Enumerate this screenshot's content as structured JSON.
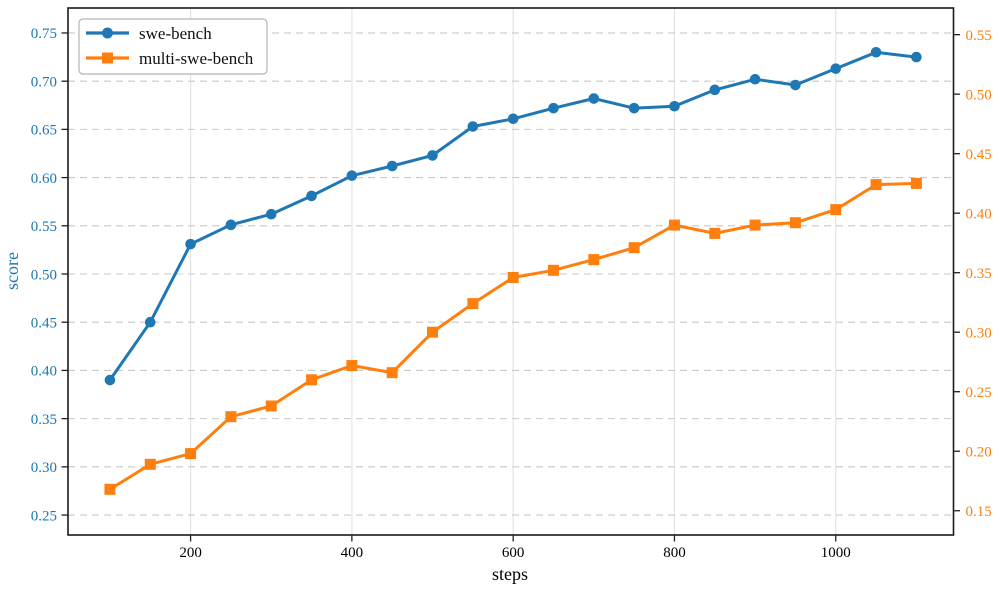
{
  "chart_data": {
    "type": "line",
    "title": "",
    "xlabel": "steps",
    "x": [
      100,
      150,
      200,
      250,
      300,
      350,
      400,
      450,
      500,
      550,
      600,
      650,
      700,
      750,
      800,
      850,
      900,
      950,
      1000,
      1050,
      1100
    ],
    "x_ticks": [
      200,
      400,
      600,
      800,
      1000
    ],
    "xlim": [
      48,
      1146
    ],
    "left_axis": {
      "label": "score",
      "color": "#1f77b4",
      "ticks": [
        0.25,
        0.3,
        0.35,
        0.4,
        0.45,
        0.5,
        0.55,
        0.6,
        0.65,
        0.7,
        0.75
      ],
      "lim": [
        0.2293,
        0.7759
      ]
    },
    "right_axis": {
      "label": "",
      "color": "#ff7f0e",
      "ticks": [
        0.15,
        0.2,
        0.25,
        0.3,
        0.35,
        0.4,
        0.45,
        0.5,
        0.55
      ],
      "lim": [
        0.1296,
        0.5724
      ]
    },
    "series": [
      {
        "name": "swe-bench",
        "axis": "left",
        "color": "#1f77b4",
        "marker": "circle",
        "values": [
          0.39,
          0.45,
          0.531,
          0.551,
          0.562,
          0.581,
          0.602,
          0.612,
          0.623,
          0.653,
          0.661,
          0.672,
          0.682,
          0.672,
          0.674,
          0.691,
          0.702,
          0.696,
          0.713,
          0.73,
          0.725
        ]
      },
      {
        "name": "multi-swe-bench",
        "axis": "right",
        "color": "#ff7f0e",
        "marker": "square",
        "values": [
          0.168,
          0.189,
          0.198,
          0.229,
          0.238,
          0.26,
          0.272,
          0.266,
          0.3,
          0.324,
          0.346,
          0.352,
          0.361,
          0.371,
          0.39,
          0.383,
          0.39,
          0.392,
          0.403,
          0.424,
          0.425
        ]
      }
    ],
    "legend": {
      "position": "upper-left",
      "entries": [
        "swe-bench",
        "multi-swe-bench"
      ]
    },
    "grid": {
      "horizontal": "dashed",
      "vertical": "solid"
    },
    "colors": {
      "frame": "#1a1a1a",
      "h_grid": "#c9c9c9",
      "v_grid": "#e2e2e2",
      "x_tick_label": "#000000",
      "legend_border": "#b4b4b4"
    }
  }
}
